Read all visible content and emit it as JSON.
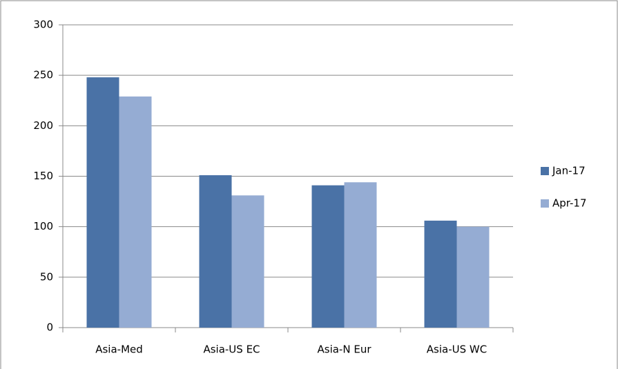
{
  "chart_data": {
    "type": "bar",
    "categories": [
      "Asia-Med",
      "Asia-US EC",
      "Asia-N Eur",
      "Asia-US WC"
    ],
    "series": [
      {
        "name": "Jan-17",
        "color": "#4a72a6",
        "values": [
          248,
          151,
          141,
          106
        ]
      },
      {
        "name": "Apr-17",
        "color": "#95acd3",
        "values": [
          229,
          131,
          144,
          100
        ]
      }
    ],
    "ylim": [
      0,
      300
    ],
    "yticks": [
      0,
      50,
      100,
      150,
      200,
      250,
      300
    ],
    "grid": true,
    "legend": "right"
  }
}
